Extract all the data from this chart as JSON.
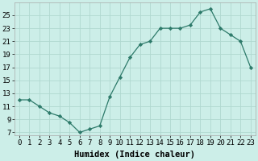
{
  "x": [
    0,
    1,
    2,
    3,
    4,
    5,
    6,
    7,
    8,
    9,
    10,
    11,
    12,
    13,
    14,
    15,
    16,
    17,
    18,
    19,
    20,
    21,
    22,
    23
  ],
  "y": [
    12,
    12,
    11,
    10,
    9.5,
    8.5,
    7,
    7.5,
    8,
    12.5,
    15.5,
    18.5,
    20.5,
    21,
    23,
    23,
    23,
    23.5,
    25.5,
    26,
    23,
    22,
    21,
    17
  ],
  "line_color": "#2d7a6a",
  "marker_color": "#2d7a6a",
  "background_color": "#cceee8",
  "grid_color": "#b0d8d0",
  "xlabel": "Humidex (Indice chaleur)",
  "xlim": [
    -0.5,
    23.5
  ],
  "ylim": [
    6.5,
    27
  ],
  "yticks": [
    7,
    9,
    11,
    13,
    15,
    17,
    19,
    21,
    23,
    25
  ],
  "xticks": [
    0,
    1,
    2,
    3,
    4,
    5,
    6,
    7,
    8,
    9,
    10,
    11,
    12,
    13,
    14,
    15,
    16,
    17,
    18,
    19,
    20,
    21,
    22,
    23
  ],
  "xtick_labels": [
    "0",
    "1",
    "2",
    "3",
    "4",
    "5",
    "6",
    "7",
    "8",
    "9",
    "10",
    "11",
    "12",
    "13",
    "14",
    "15",
    "16",
    "17",
    "18",
    "19",
    "20",
    "21",
    "22",
    "23"
  ],
  "tick_fontsize": 6.5,
  "xlabel_fontsize": 7.5
}
